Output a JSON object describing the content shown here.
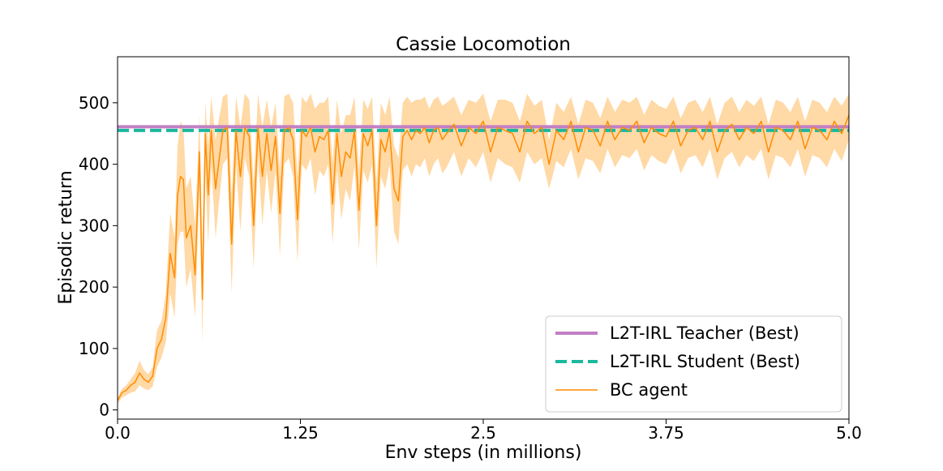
{
  "chart_data": {
    "type": "line",
    "title": "Cassie Locomotion",
    "xlabel": "Env steps (in millions)",
    "ylabel": "Episodic return",
    "xlim": [
      0,
      5.0
    ],
    "ylim": [
      -15,
      575
    ],
    "x_ticks": [
      0,
      1.25,
      2.5,
      3.75,
      5.0
    ],
    "x_tick_labels": [
      "0.0",
      "1.25",
      "2.5",
      "3.75",
      "5.0"
    ],
    "y_ticks": [
      0,
      100,
      200,
      300,
      400,
      500
    ],
    "y_tick_labels": [
      "0",
      "100",
      "200",
      "300",
      "400",
      "500"
    ],
    "grid": false,
    "legend_position": "bottom-right",
    "colors": {
      "teacher": "#c27fc4",
      "student": "#1ab89e",
      "bc": "#ff8c00",
      "band": "#ffcc88"
    },
    "series": [
      {
        "name": "L2T-IRL Teacher (Best)",
        "style": "solid",
        "constant": 461
      },
      {
        "name": "L2T-IRL Student (Best)",
        "style": "dashed",
        "constant": 455
      },
      {
        "name": "BC agent",
        "style": "solid",
        "x": [
          0.0,
          0.03,
          0.06,
          0.09,
          0.12,
          0.15,
          0.18,
          0.21,
          0.24,
          0.27,
          0.3,
          0.33,
          0.36,
          0.39,
          0.41,
          0.43,
          0.45,
          0.47,
          0.5,
          0.53,
          0.56,
          0.58,
          0.6,
          0.62,
          0.64,
          0.67,
          0.69,
          0.72,
          0.75,
          0.78,
          0.81,
          0.84,
          0.87,
          0.9,
          0.93,
          0.96,
          0.99,
          1.02,
          1.05,
          1.08,
          1.11,
          1.14,
          1.17,
          1.2,
          1.23,
          1.26,
          1.29,
          1.32,
          1.35,
          1.38,
          1.41,
          1.44,
          1.47,
          1.5,
          1.53,
          1.56,
          1.59,
          1.62,
          1.65,
          1.68,
          1.71,
          1.74,
          1.77,
          1.8,
          1.83,
          1.86,
          1.89,
          1.92,
          1.95,
          1.98,
          2.01,
          2.04,
          2.07,
          2.1,
          2.13,
          2.16,
          2.19,
          2.22,
          2.25,
          2.3,
          2.35,
          2.4,
          2.45,
          2.5,
          2.55,
          2.6,
          2.65,
          2.7,
          2.75,
          2.8,
          2.85,
          2.9,
          2.95,
          3.0,
          3.05,
          3.1,
          3.15,
          3.2,
          3.25,
          3.3,
          3.35,
          3.4,
          3.45,
          3.5,
          3.55,
          3.6,
          3.65,
          3.7,
          3.75,
          3.8,
          3.85,
          3.9,
          3.95,
          4.0,
          4.05,
          4.1,
          4.15,
          4.2,
          4.25,
          4.3,
          4.35,
          4.4,
          4.45,
          4.5,
          4.55,
          4.6,
          4.65,
          4.7,
          4.75,
          4.8,
          4.85,
          4.9,
          4.95,
          5.0
        ],
        "values": [
          15,
          28,
          32,
          40,
          45,
          60,
          50,
          45,
          55,
          100,
          115,
          150,
          255,
          215,
          350,
          380,
          375,
          280,
          300,
          220,
          420,
          180,
          450,
          350,
          455,
          360,
          400,
          455,
          460,
          270,
          455,
          380,
          460,
          445,
          300,
          460,
          380,
          450,
          390,
          445,
          320,
          455,
          460,
          440,
          310,
          455,
          445,
          460,
          420,
          445,
          440,
          455,
          335,
          450,
          380,
          420,
          410,
          455,
          325,
          450,
          430,
          455,
          300,
          440,
          420,
          455,
          360,
          340,
          445,
          455,
          440,
          455,
          450,
          460,
          435,
          455,
          460,
          440,
          450,
          465,
          430,
          460,
          450,
          470,
          420,
          460,
          455,
          450,
          420,
          470,
          450,
          460,
          400,
          455,
          440,
          470,
          420,
          460,
          455,
          430,
          470,
          440,
          460,
          455,
          470,
          435,
          460,
          450,
          445,
          470,
          430,
          455,
          460,
          440,
          470,
          420,
          455,
          465,
          440,
          460,
          450,
          470,
          420,
          460,
          455,
          440,
          470,
          425,
          460,
          455,
          440,
          470,
          450,
          480
        ],
        "lower": [
          10,
          20,
          24,
          28,
          30,
          40,
          35,
          32,
          38,
          70,
          85,
          110,
          190,
          150,
          270,
          290,
          290,
          200,
          230,
          150,
          360,
          110,
          390,
          270,
          400,
          280,
          330,
          400,
          410,
          190,
          400,
          290,
          410,
          380,
          230,
          410,
          300,
          390,
          320,
          390,
          250,
          400,
          410,
          380,
          240,
          400,
          390,
          410,
          350,
          390,
          380,
          400,
          270,
          390,
          310,
          360,
          340,
          400,
          260,
          390,
          370,
          400,
          230,
          380,
          360,
          400,
          290,
          270,
          390,
          400,
          380,
          400,
          395,
          410,
          380,
          400,
          410,
          385,
          395,
          420,
          380,
          410,
          395,
          420,
          370,
          410,
          400,
          395,
          370,
          420,
          400,
          410,
          360,
          405,
          395,
          425,
          375,
          410,
          405,
          385,
          425,
          395,
          415,
          410,
          425,
          390,
          415,
          405,
          400,
          425,
          385,
          410,
          415,
          395,
          425,
          375,
          410,
          420,
          395,
          415,
          405,
          425,
          375,
          415,
          410,
          395,
          425,
          380,
          415,
          410,
          395,
          425,
          405,
          440
        ],
        "upper": [
          20,
          34,
          40,
          50,
          60,
          80,
          65,
          58,
          70,
          130,
          145,
          190,
          320,
          280,
          430,
          470,
          460,
          360,
          380,
          300,
          480,
          260,
          500,
          430,
          510,
          440,
          470,
          510,
          515,
          350,
          510,
          460,
          515,
          505,
          370,
          515,
          460,
          505,
          460,
          500,
          390,
          510,
          515,
          500,
          380,
          510,
          500,
          515,
          490,
          500,
          500,
          510,
          400,
          505,
          450,
          480,
          480,
          510,
          390,
          505,
          490,
          510,
          370,
          500,
          480,
          510,
          430,
          410,
          500,
          510,
          500,
          505,
          505,
          510,
          490,
          505,
          510,
          495,
          500,
          510,
          480,
          505,
          500,
          515,
          470,
          505,
          505,
          500,
          470,
          515,
          495,
          505,
          440,
          500,
          485,
          510,
          465,
          505,
          500,
          475,
          510,
          485,
          505,
          500,
          510,
          480,
          505,
          495,
          490,
          510,
          475,
          500,
          505,
          485,
          510,
          465,
          500,
          510,
          485,
          505,
          495,
          510,
          465,
          505,
          500,
          485,
          510,
          470,
          505,
          500,
          485,
          510,
          495,
          515
        ]
      }
    ]
  }
}
